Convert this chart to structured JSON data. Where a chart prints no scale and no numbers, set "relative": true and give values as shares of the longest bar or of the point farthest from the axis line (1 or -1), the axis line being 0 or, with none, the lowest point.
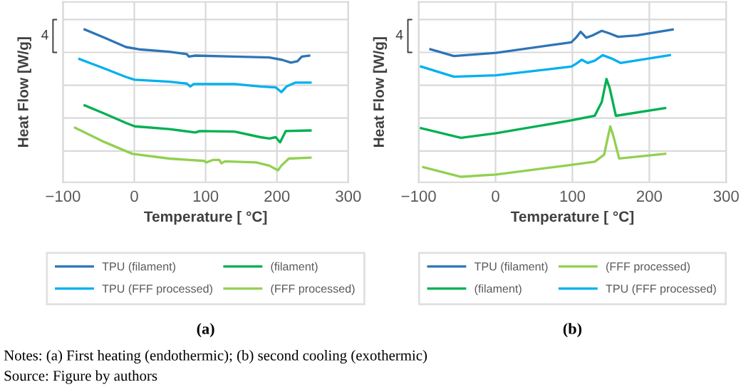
{
  "chart_data": [
    {
      "type": "line",
      "title": "(a)",
      "xlabel": "Temperature [ °C]",
      "ylabel": "Heat Flow [W/g]",
      "relative": true,
      "grid": true,
      "legend": "bottom",
      "xlim": [
        -100,
        300
      ],
      "xticks": [
        {
          "value": -100,
          "label": "−100"
        },
        0,
        100,
        200,
        300
      ],
      "annotations": [
        "4",
        "Notes: (a) First heating (endothermic); (b) second cooling (exothermic)",
        "Source: Figure by authors"
      ],
      "series": [
        {
          "name": "TPU (filament)",
          "color": "#2e75b6",
          "x": [
            -69.6,
            -42.2,
            -11.7,
            6.5,
            49.2,
            73.5,
            76.6,
            85.7,
            140.5,
            189.2,
            207.5,
            219.6,
            228.8,
            234.9,
            245.2
          ],
          "values": [
            1.0,
            0.947,
            0.885,
            0.87,
            0.854,
            0.839,
            0.823,
            0.829,
            0.823,
            0.817,
            0.801,
            0.783,
            0.792,
            0.823,
            0.829
          ]
        },
        {
          "name": "TPU (FFF processed)",
          "color": "#00b0f0",
          "x": [
            -76.9,
            -42.2,
            -11.7,
            0.5,
            49.2,
            73.5,
            78.4,
            83.3,
            140.5,
            177,
            198.3,
            206.2,
            213.5,
            225.7,
            247
          ],
          "values": [
            0.807,
            0.745,
            0.689,
            0.671,
            0.658,
            0.646,
            0.627,
            0.643,
            0.643,
            0.627,
            0.621,
            0.59,
            0.627,
            0.652,
            0.652
          ]
        },
        {
          "name": "(filament)",
          "color": "#00b050",
          "x": [
            -69.6,
            -42.2,
            -11.7,
            0.5,
            49.2,
            85.7,
            91.8,
            140.5,
            177,
            189.2,
            198.3,
            204.4,
            212.3,
            247
          ],
          "values": [
            0.503,
            0.45,
            0.388,
            0.366,
            0.348,
            0.326,
            0.335,
            0.332,
            0.295,
            0.286,
            0.295,
            0.261,
            0.335,
            0.339
          ]
        },
        {
          "name": "(FFF processed)",
          "color": "#92d050",
          "x": [
            -83,
            -42.2,
            -2.6,
            49.2,
            97.9,
            100.9,
            110,
            119.2,
            122.2,
            127.1,
            170.9,
            189.2,
            201.4,
            206.2,
            216.6,
            247
          ],
          "values": [
            0.357,
            0.264,
            0.186,
            0.155,
            0.14,
            0.13,
            0.146,
            0.146,
            0.124,
            0.137,
            0.13,
            0.109,
            0.078,
            0.109,
            0.155,
            0.161
          ]
        }
      ]
    },
    {
      "type": "line",
      "title": "(b)",
      "xlabel": "Temperature [ °C]",
      "ylabel": "Heat Flow [W/g]",
      "relative": true,
      "grid": true,
      "legend": "bottom",
      "xlim": [
        -100,
        300
      ],
      "xticks": [
        {
          "value": -100,
          "label": "−100"
        },
        0,
        100,
        200,
        300
      ],
      "annotations": [
        "4"
      ],
      "series": [
        {
          "name": "TPU (filament)",
          "color": "#2e75b6",
          "x": [
            -84.7,
            -54.2,
            0.8,
            98.5,
            104.6,
            110.7,
            118,
            126,
            138.2,
            147.3,
            159.5,
            184,
            230.4
          ],
          "values": [
            0.871,
            0.826,
            0.847,
            0.916,
            0.946,
            0.985,
            0.946,
            0.961,
            0.991,
            0.976,
            0.952,
            0.961,
            1.0
          ]
        },
        {
          "name": "(filament)",
          "color": "#00b050",
          "x": [
            -96.9,
            -45,
            0.8,
            98.5,
            129,
            138.2,
            144.3,
            148.5,
            156.5,
            220.6
          ],
          "values": [
            0.354,
            0.291,
            0.321,
            0.405,
            0.435,
            0.526,
            0.676,
            0.616,
            0.435,
            0.486
          ]
        },
        {
          "name": "(FFF processed)",
          "color": "#92d050",
          "x": [
            -93.9,
            -45,
            0.8,
            98.5,
            129,
            141.2,
            149.2,
            153.4,
            160.8,
            220.6
          ],
          "values": [
            0.099,
            0.036,
            0.051,
            0.114,
            0.135,
            0.18,
            0.366,
            0.3,
            0.156,
            0.186
          ]
        },
        {
          "name": "TPU (FFF processed)",
          "color": "#00b0f0",
          "x": [
            -96.9,
            -54.2,
            0.8,
            98.5,
            104.6,
            111.9,
            119.8,
            129,
            139.4,
            150.4,
            162.6,
            226.7
          ],
          "values": [
            0.757,
            0.691,
            0.7,
            0.757,
            0.775,
            0.802,
            0.781,
            0.796,
            0.832,
            0.811,
            0.781,
            0.832
          ]
        }
      ]
    }
  ]
}
